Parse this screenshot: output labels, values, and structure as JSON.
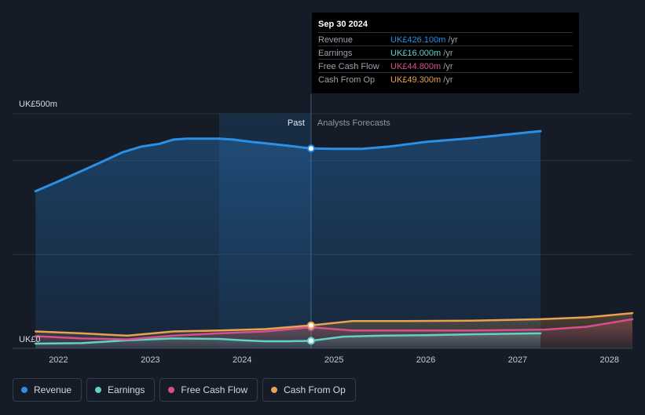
{
  "chart_data": {
    "type": "area",
    "y_axis": {
      "top_label": "UK£500m",
      "bottom_label": "UK£0",
      "range": [
        0,
        500
      ],
      "unit": "UK£m"
    },
    "x_axis": {
      "ticks": [
        "2022",
        "2023",
        "2024",
        "2025",
        "2026",
        "2027",
        "2028"
      ],
      "range": [
        2021.5,
        2028.25
      ]
    },
    "divider": {
      "past_label": "Past",
      "forecast_label": "Analysts Forecasts",
      "x": 2024.75
    },
    "highlight_start": 2023.75,
    "grid": true,
    "legend_position": "bottom-left",
    "series": [
      {
        "name": "Revenue",
        "color": "#2b8fe6",
        "points": [
          [
            2021.75,
            335
          ],
          [
            2022.0,
            356
          ],
          [
            2022.25,
            378
          ],
          [
            2022.5,
            400
          ],
          [
            2022.7,
            418
          ],
          [
            2022.9,
            430
          ],
          [
            2023.0,
            433
          ],
          [
            2023.1,
            436
          ],
          [
            2023.25,
            445
          ],
          [
            2023.4,
            447
          ],
          [
            2023.6,
            447
          ],
          [
            2023.75,
            447
          ],
          [
            2023.9,
            445
          ],
          [
            2024.1,
            440
          ],
          [
            2024.3,
            436
          ],
          [
            2024.5,
            432
          ],
          [
            2024.75,
            426
          ],
          [
            2025.0,
            425
          ],
          [
            2025.3,
            425
          ],
          [
            2025.6,
            430
          ],
          [
            2026.0,
            440
          ],
          [
            2026.5,
            448
          ],
          [
            2027.25,
            463
          ]
        ]
      },
      {
        "name": "Earnings",
        "color": "#5fd3c6",
        "points": [
          [
            2021.75,
            10
          ],
          [
            2022.25,
            11
          ],
          [
            2022.75,
            17
          ],
          [
            2023.25,
            21
          ],
          [
            2023.75,
            20
          ],
          [
            2024.0,
            17
          ],
          [
            2024.25,
            15
          ],
          [
            2024.5,
            15
          ],
          [
            2024.75,
            16
          ],
          [
            2025.1,
            25
          ],
          [
            2025.5,
            27
          ],
          [
            2026.0,
            28
          ],
          [
            2026.5,
            30
          ],
          [
            2027.25,
            32
          ]
        ]
      },
      {
        "name": "Free Cash Flow",
        "color": "#d5508a",
        "points": [
          [
            2021.75,
            26
          ],
          [
            2022.25,
            21
          ],
          [
            2022.75,
            19
          ],
          [
            2023.25,
            27
          ],
          [
            2023.75,
            32
          ],
          [
            2024.25,
            36
          ],
          [
            2024.75,
            45
          ],
          [
            2025.2,
            38
          ],
          [
            2025.75,
            38
          ],
          [
            2026.5,
            38
          ],
          [
            2027.3,
            40
          ],
          [
            2027.75,
            46
          ],
          [
            2028.25,
            62
          ]
        ]
      },
      {
        "name": "Cash From Op",
        "color": "#e7a352",
        "points": [
          [
            2021.75,
            36
          ],
          [
            2022.25,
            32
          ],
          [
            2022.75,
            27
          ],
          [
            2023.25,
            36
          ],
          [
            2023.75,
            38
          ],
          [
            2024.25,
            41
          ],
          [
            2024.75,
            49
          ],
          [
            2025.2,
            58
          ],
          [
            2025.75,
            58
          ],
          [
            2026.5,
            59
          ],
          [
            2027.25,
            62
          ],
          [
            2027.75,
            66
          ],
          [
            2028.25,
            75
          ]
        ]
      }
    ]
  },
  "tooltip": {
    "date": "Sep 30 2024",
    "rows": [
      {
        "label": "Revenue",
        "value": "UK£426.100m",
        "unit": "/yr",
        "color": "#2b8fe6"
      },
      {
        "label": "Earnings",
        "value": "UK£16.000m",
        "unit": "/yr",
        "color": "#5fd3c6"
      },
      {
        "label": "Free Cash Flow",
        "value": "UK£44.800m",
        "unit": "/yr",
        "color": "#d5508a"
      },
      {
        "label": "Cash From Op",
        "value": "UK£49.300m",
        "unit": "/yr",
        "color": "#e7a352"
      }
    ]
  },
  "legend": [
    {
      "label": "Revenue",
      "color": "#2b8fe6"
    },
    {
      "label": "Earnings",
      "color": "#5fd3c6"
    },
    {
      "label": "Free Cash Flow",
      "color": "#d5508a"
    },
    {
      "label": "Cash From Op",
      "color": "#e7a352"
    }
  ]
}
